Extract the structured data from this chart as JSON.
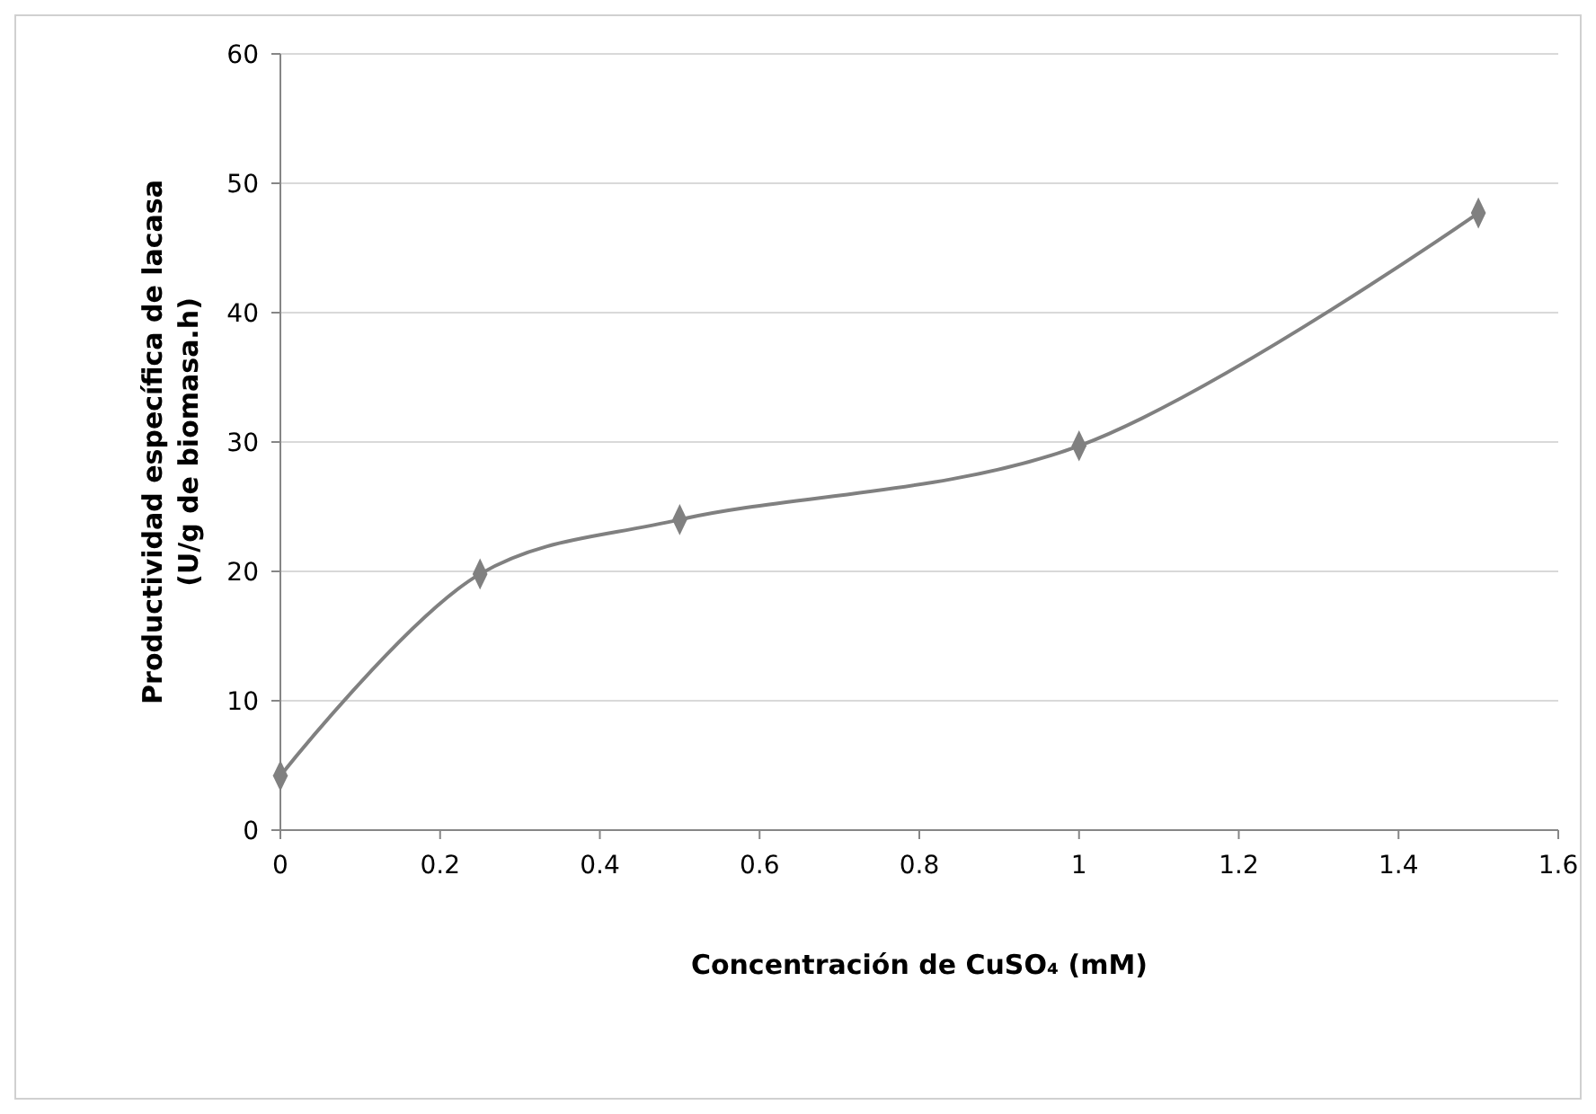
{
  "chart_data": {
    "type": "line",
    "xlabel": "Concentración de CuSO₄ (mM)",
    "ylabel": "Productividad específica de lacasa\n(U/g de biomasa.h)",
    "x": [
      0,
      0.25,
      0.5,
      1,
      1.5
    ],
    "series": [
      {
        "color": "#808080",
        "values": [
          4.2,
          19.8,
          24,
          29.7,
          47.7
        ]
      }
    ],
    "xlim": [
      0,
      1.6
    ],
    "xticks": [
      0,
      0.2,
      0.4,
      0.6,
      0.8,
      1,
      1.2,
      1.4,
      1.6
    ],
    "ylim": [
      0,
      60
    ],
    "yticks": [
      0,
      10,
      20,
      30,
      40,
      50,
      60
    ],
    "grid": "y",
    "marker": "diamond",
    "line_style": "solid"
  }
}
